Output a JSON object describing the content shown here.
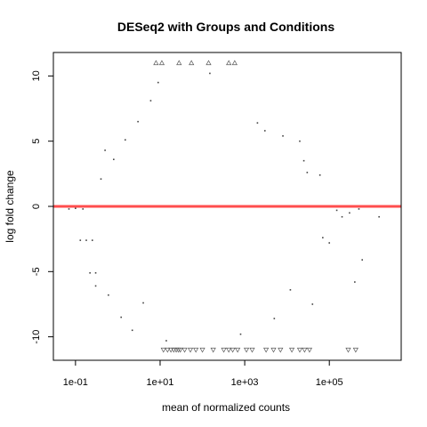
{
  "chart_data": {
    "type": "scatter",
    "title": "DESeq2 with Groups and Conditions",
    "xlabel": "mean of normalized counts",
    "ylabel": "log fold change",
    "x_scale": "log10",
    "xlim": [
      0.03,
      5000000
    ],
    "ylim": [
      -11.8,
      11.8
    ],
    "x_ticks": [
      {
        "value": 0.1,
        "label": "1e-01"
      },
      {
        "value": 10,
        "label": "1e+01"
      },
      {
        "value": 1000,
        "label": "1e+03"
      },
      {
        "value": 100000,
        "label": "1e+05"
      }
    ],
    "y_ticks": [
      {
        "value": -10,
        "label": "-10"
      },
      {
        "value": -5,
        "label": "-5"
      },
      {
        "value": 0,
        "label": "0"
      },
      {
        "value": 5,
        "label": "5"
      },
      {
        "value": 10,
        "label": "10"
      }
    ],
    "reference_line": {
      "y": 0,
      "color": "#ff3030"
    },
    "point_color": "#444444",
    "outliers_high": {
      "y": 11,
      "x": [
        8,
        11,
        28,
        55,
        140,
        420,
        580
      ]
    },
    "outliers_low": {
      "y": -11,
      "x": [
        12,
        15,
        18,
        21,
        24,
        27,
        30,
        38,
        52,
        70,
        100,
        180,
        320,
        420,
        520,
        680,
        1100,
        1500,
        3200,
        4800,
        7000,
        13000,
        20000,
        26000,
        34000,
        280000,
        420000
      ]
    },
    "series": [
      {
        "values": [
          {
            "x": 0.07,
            "y": -0.2
          },
          {
            "x": 0.1,
            "y": -0.15
          },
          {
            "x": 0.15,
            "y": -0.2
          },
          {
            "x": 0.13,
            "y": -2.6
          },
          {
            "x": 0.18,
            "y": -2.6
          },
          {
            "x": 0.25,
            "y": -2.6
          },
          {
            "x": 0.22,
            "y": -5.1
          },
          {
            "x": 0.3,
            "y": -5.1
          },
          {
            "x": 0.3,
            "y": -6.1
          },
          {
            "x": 0.4,
            "y": 2.1
          },
          {
            "x": 0.5,
            "y": 4.3
          },
          {
            "x": 0.6,
            "y": -6.8
          },
          {
            "x": 0.8,
            "y": 3.6
          },
          {
            "x": 1.2,
            "y": -8.5
          },
          {
            "x": 1.5,
            "y": 5.1
          },
          {
            "x": 2.2,
            "y": -9.5
          },
          {
            "x": 3.0,
            "y": 6.5
          },
          {
            "x": 4.0,
            "y": -7.4
          },
          {
            "x": 6.0,
            "y": 8.1
          },
          {
            "x": 9.0,
            "y": 9.5
          },
          {
            "x": 14,
            "y": -10.3
          },
          {
            "x": 2000,
            "y": 6.4
          },
          {
            "x": 3000,
            "y": 5.8
          },
          {
            "x": 8000,
            "y": 5.4
          },
          {
            "x": 20000,
            "y": 5.0
          },
          {
            "x": 30000,
            "y": 2.6
          },
          {
            "x": 60000,
            "y": 2.4
          },
          {
            "x": 70000,
            "y": -2.4
          },
          {
            "x": 100000,
            "y": -2.8
          },
          {
            "x": 150000,
            "y": -0.3
          },
          {
            "x": 200000,
            "y": -0.8
          },
          {
            "x": 300000,
            "y": -0.5
          },
          {
            "x": 400000,
            "y": -5.8
          },
          {
            "x": 500000,
            "y": -0.2
          },
          {
            "x": 600000,
            "y": -4.1
          },
          {
            "x": 1500000,
            "y": -0.8
          },
          {
            "x": 40000,
            "y": -7.5
          },
          {
            "x": 12000,
            "y": -6.4
          },
          {
            "x": 5000,
            "y": -8.6
          },
          {
            "x": 800,
            "y": -9.8
          },
          {
            "x": 25000,
            "y": 3.5
          },
          {
            "x": 150,
            "y": 10.2
          }
        ]
      }
    ]
  }
}
